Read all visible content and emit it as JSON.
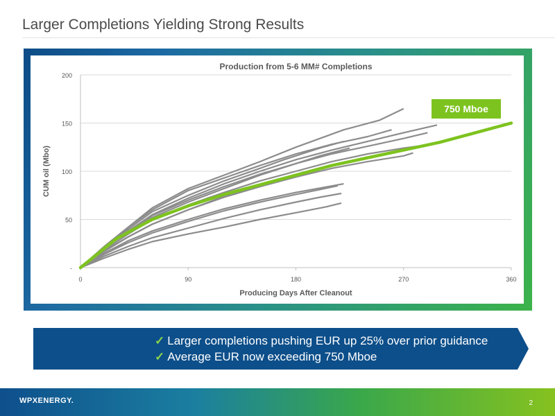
{
  "slide": {
    "title": "Larger Completions Yielding Strong Results",
    "page_number": "2",
    "logo_text": "WPXENERGY."
  },
  "banner": {
    "lines": [
      "Larger completions pushing EUR up 25% over prior guidance",
      "Average EUR now exceeding 750 Mboe"
    ],
    "check_glyph": "✓"
  },
  "colors": {
    "avg_curve": "#7dc31f",
    "well_curves": "#8c8c8c",
    "banner": "#0d4f8a",
    "check": "#8ad24a"
  },
  "chart_data": {
    "type": "line",
    "title": "Production from 5-6 MM# Completions",
    "xlabel": "Producing Days After Cleanout",
    "ylabel": "CUM oil (Mbo)",
    "xlim": [
      0,
      360
    ],
    "ylim": [
      0,
      200
    ],
    "x_ticks": [
      0,
      90,
      180,
      270,
      360
    ],
    "x_tick_labels": [
      "0",
      "90",
      "180",
      "270",
      "360"
    ],
    "y_ticks": [
      0,
      50,
      100,
      150,
      200
    ],
    "y_tick_labels": [
      "-",
      "50",
      "100",
      "150",
      "200"
    ],
    "grid": "horizontal",
    "annotation": "750 Mboe",
    "avg_series": {
      "x": [
        0,
        30,
        60,
        90,
        120,
        150,
        180,
        210,
        240,
        270,
        300,
        330,
        360
      ],
      "y": [
        0,
        30,
        50,
        64,
        76,
        86,
        96,
        106,
        114,
        122,
        130,
        140,
        150
      ]
    },
    "well_series": [
      {
        "x": [
          0,
          20,
          40,
          60,
          90,
          120,
          150,
          180,
          220,
          250,
          270
        ],
        "y": [
          0,
          22,
          42,
          62,
          82,
          96,
          110,
          125,
          143,
          153,
          165
        ]
      },
      {
        "x": [
          0,
          20,
          40,
          60,
          90,
          120,
          150,
          180,
          210,
          240,
          260
        ],
        "y": [
          0,
          22,
          42,
          60,
          80,
          93,
          106,
          118,
          128,
          136,
          143
        ]
      },
      {
        "x": [
          0,
          20,
          40,
          60,
          90,
          120,
          150,
          180,
          210,
          240,
          270,
          298
        ],
        "y": [
          0,
          20,
          38,
          55,
          72,
          87,
          100,
          112,
          122,
          131,
          140,
          148
        ]
      },
      {
        "x": [
          0,
          20,
          40,
          60,
          90,
          120,
          150,
          180,
          210,
          240,
          270,
          290
        ],
        "y": [
          0,
          20,
          38,
          54,
          70,
          84,
          97,
          108,
          118,
          126,
          134,
          140
        ]
      },
      {
        "x": [
          0,
          20,
          40,
          60,
          90,
          120,
          150,
          180,
          210,
          240,
          270,
          288
        ],
        "y": [
          0,
          18,
          35,
          50,
          65,
          78,
          90,
          100,
          110,
          118,
          124,
          127
        ]
      },
      {
        "x": [
          0,
          20,
          40,
          60,
          90,
          120,
          150,
          180,
          210,
          240,
          270,
          278
        ],
        "y": [
          0,
          17,
          32,
          45,
          60,
          73,
          84,
          94,
          103,
          110,
          116,
          119
        ]
      },
      {
        "x": [
          0,
          20,
          40,
          60,
          90,
          120,
          150,
          170,
          200,
          220
        ],
        "y": [
          0,
          22,
          40,
          58,
          75,
          90,
          103,
          112,
          124,
          131
        ]
      },
      {
        "x": [
          0,
          20,
          40,
          60,
          90,
          120,
          150,
          180,
          200,
          225
        ],
        "y": [
          0,
          20,
          37,
          52,
          68,
          82,
          96,
          108,
          116,
          124
        ]
      },
      {
        "x": [
          0,
          20,
          40,
          60,
          90,
          120,
          150,
          180,
          205,
          225
        ],
        "y": [
          0,
          17,
          32,
          45,
          60,
          74,
          86,
          96,
          104,
          110
        ]
      },
      {
        "x": [
          0,
          20,
          40,
          60,
          90,
          120,
          150,
          180,
          220
        ],
        "y": [
          0,
          15,
          28,
          38,
          50,
          61,
          70,
          78,
          87
        ]
      },
      {
        "x": [
          0,
          20,
          40,
          60,
          90,
          120,
          150,
          180,
          200,
          215
        ],
        "y": [
          0,
          14,
          26,
          36,
          48,
          59,
          68,
          76,
          81,
          85
        ]
      },
      {
        "x": [
          0,
          20,
          40,
          60,
          90,
          120,
          150,
          180,
          200,
          218
        ],
        "y": [
          0,
          12,
          22,
          31,
          41,
          51,
          60,
          68,
          73,
          77
        ]
      },
      {
        "x": [
          0,
          20,
          40,
          60,
          90,
          120,
          150,
          180,
          205,
          218
        ],
        "y": [
          0,
          10,
          19,
          27,
          35,
          42,
          50,
          57,
          63,
          67
        ]
      }
    ]
  }
}
